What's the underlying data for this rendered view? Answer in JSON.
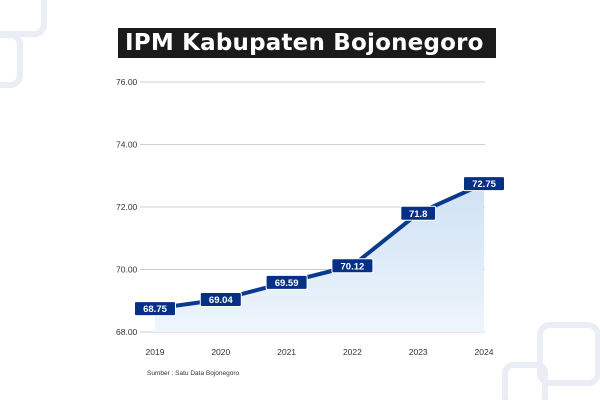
{
  "title": "IPM Kabupaten Bojonegoro",
  "source": "Sumber : Satu Data Bojonegoro",
  "colors": {
    "line": "#0a3a8f",
    "label_bg": "#062f86",
    "area_top": "#cfe1f4",
    "area_bottom": "#eef5fc",
    "grid": "#cfcfcf"
  },
  "chart_data": {
    "type": "area",
    "title": "IPM Kabupaten Bojonegoro",
    "x": [
      "2019",
      "2020",
      "2021",
      "2022",
      "2023",
      "2024"
    ],
    "values": [
      68.75,
      69.04,
      69.59,
      70.12,
      71.8,
      72.75
    ],
    "data_labels": [
      "68.75",
      "69.04",
      "69.59",
      "70.12",
      "71.8",
      "72.75"
    ],
    "y_ticks": [
      "68.00",
      "70.00",
      "72.00",
      "74.00",
      "76.00"
    ],
    "ylim": [
      68,
      76
    ],
    "xlabel": "",
    "ylabel": "",
    "grid": true,
    "legend": "none"
  }
}
